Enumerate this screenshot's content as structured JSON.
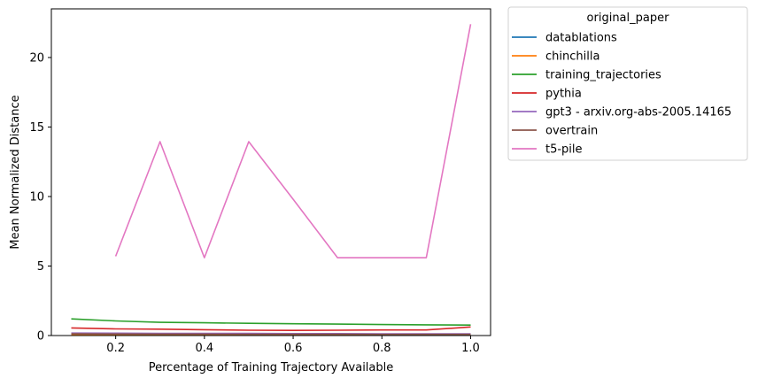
{
  "chart_data": {
    "type": "line",
    "title": "",
    "xlabel": "Percentage of Training Trajectory Available",
    "ylabel": "Mean Normalized Distance",
    "xlim": [
      0.055,
      1.045
    ],
    "ylim": [
      0,
      23.5
    ],
    "xticks": [
      0.2,
      0.4,
      0.6,
      0.8,
      1.0
    ],
    "xtick_labels": [
      "0.2",
      "0.4",
      "0.6",
      "0.8",
      "1.0"
    ],
    "yticks": [
      0,
      5,
      10,
      15,
      20
    ],
    "ytick_labels": [
      "0",
      "5",
      "10",
      "15",
      "20"
    ],
    "grid": false,
    "legend": {
      "title": "original_paper",
      "placement": "outside-upper-right"
    },
    "series": [
      {
        "name": "datablations",
        "color": "#1f77b4",
        "x": [
          0.1,
          0.2,
          0.3,
          0.4,
          0.5,
          0.6,
          0.7,
          0.8,
          0.9,
          1.0
        ],
        "y": [
          0.08,
          0.07,
          0.07,
          0.06,
          0.06,
          0.06,
          0.05,
          0.05,
          0.05,
          0.05
        ]
      },
      {
        "name": "chinchilla",
        "color": "#ff7f0e",
        "x": [
          0.1,
          0.2,
          0.3,
          0.4,
          0.5,
          0.6,
          0.7,
          0.8,
          0.9,
          1.0
        ],
        "y": [
          0.05,
          0.05,
          0.04,
          0.04,
          0.04,
          0.04,
          0.03,
          0.03,
          0.03,
          0.03
        ]
      },
      {
        "name": "training_trajectories",
        "color": "#2ca02c",
        "x": [
          0.1,
          0.2,
          0.3,
          0.4,
          0.5,
          0.6,
          0.7,
          0.8,
          0.9,
          1.0
        ],
        "y": [
          1.2,
          1.05,
          0.95,
          0.92,
          0.88,
          0.85,
          0.82,
          0.79,
          0.77,
          0.75
        ]
      },
      {
        "name": "pythia",
        "color": "#d62728",
        "x": [
          0.1,
          0.2,
          0.3,
          0.4,
          0.5,
          0.6,
          0.7,
          0.8,
          0.9,
          1.0
        ],
        "y": [
          0.55,
          0.48,
          0.46,
          0.42,
          0.38,
          0.37,
          0.38,
          0.4,
          0.4,
          0.62
        ]
      },
      {
        "name": "gpt3 - arxiv.org-abs-2005.14165",
        "color": "#9467bd",
        "x": [
          0.1,
          0.2,
          0.3,
          0.4,
          0.5,
          0.6,
          0.7,
          0.8,
          0.9,
          1.0
        ],
        "y": [
          0.18,
          0.17,
          0.16,
          0.15,
          0.15,
          0.14,
          0.14,
          0.13,
          0.13,
          0.13
        ]
      },
      {
        "name": "overtrain",
        "color": "#8c564b",
        "x": [
          0.1,
          0.2,
          0.3,
          0.4,
          0.5,
          0.6,
          0.7,
          0.8,
          0.9,
          1.0
        ],
        "y": [
          0.12,
          0.11,
          0.1,
          0.1,
          0.09,
          0.09,
          0.09,
          0.08,
          0.08,
          0.08
        ]
      },
      {
        "name": "t5-pile",
        "color": "#e377c2",
        "x": [
          0.2,
          0.3,
          0.4,
          0.5,
          0.6,
          0.7,
          0.8,
          0.9,
          1.0
        ],
        "y": [
          5.7,
          13.95,
          5.6,
          13.95,
          9.8,
          5.6,
          5.6,
          5.6,
          22.4
        ]
      }
    ]
  }
}
